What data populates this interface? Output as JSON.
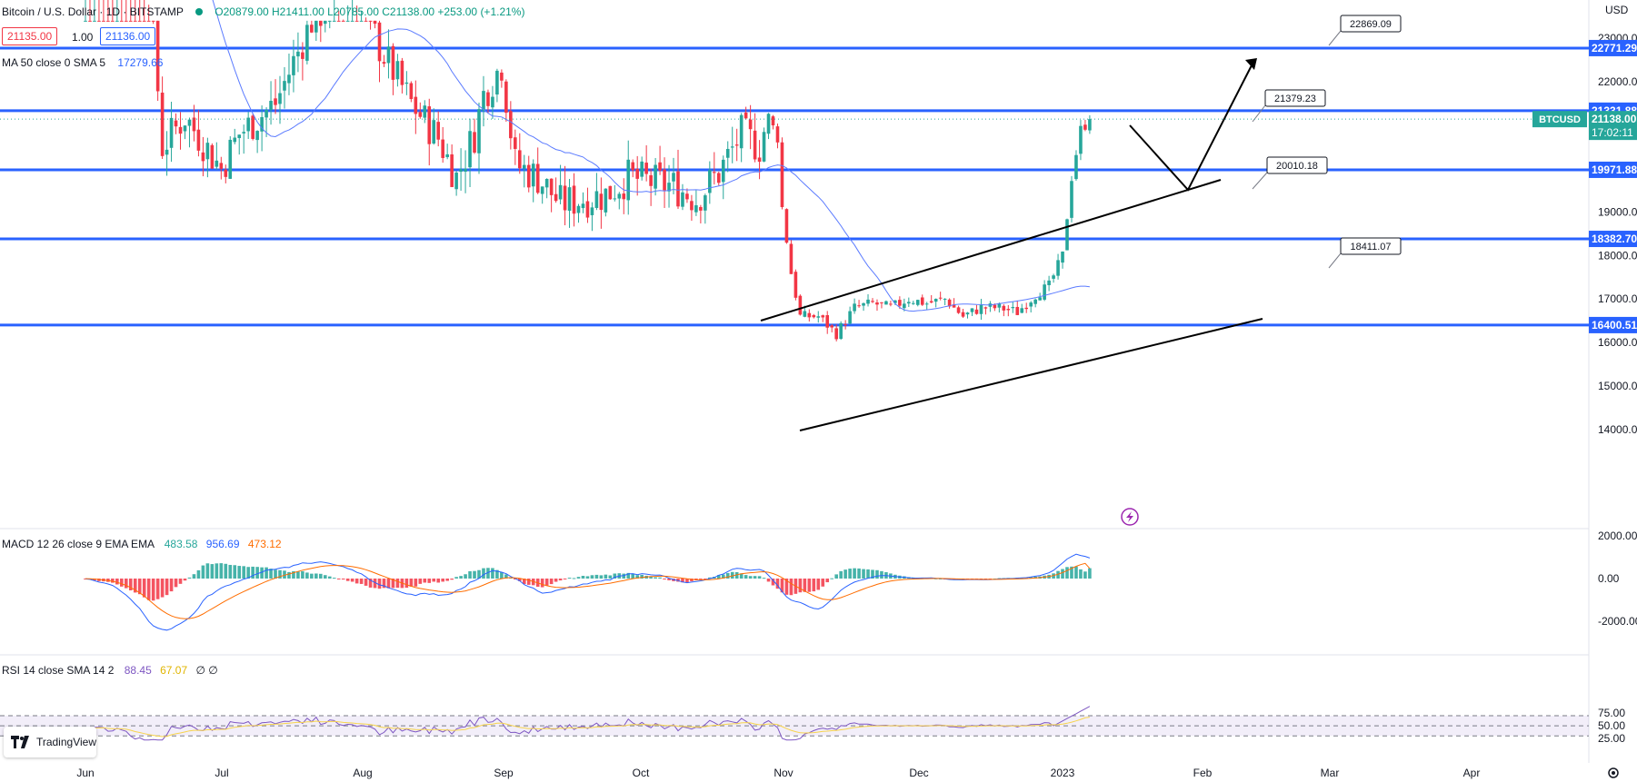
{
  "header": {
    "title": "Bitcoin / U.S. Dollar · 1D · BITSTAMP",
    "ohlc": "O20879.00 H21411.00 L20785.00 C21138.00 +253.00 (+1.21%)",
    "sell_price": "21135.00",
    "spread": "1.00",
    "buy_price": "21136.00",
    "ma_label": "MA 50 close 0 SMA 5",
    "ma_value": "17279.66",
    "currency": "USD"
  },
  "macd_legend": {
    "label": "MACD 12 26 close 9 EMA EMA",
    "v1": "483.58",
    "v2": "956.69",
    "v3": "473.12"
  },
  "rsi_legend": {
    "label": "RSI 14 close SMA 14 2",
    "v1": "88.45",
    "v2": "67.07",
    "v3": "∅ ∅"
  },
  "logo_text": "TradingView",
  "colors": {
    "up": "#26a69a",
    "down": "#f23645",
    "level": "#2962ff",
    "ma": "#5b7bff",
    "macd": "#2962ff",
    "signal": "#ff6d00",
    "rsi": "#7e57c2",
    "rsi_sma": "#f7d44c"
  },
  "chart_data": [
    {
      "type": "candlestick",
      "title": "Bitcoin / U.S. Dollar · 1D · BITSTAMP",
      "ylim": [
        13000,
        23400
      ],
      "y_ticks": [
        14000,
        15000,
        16000,
        17000,
        18000,
        19000,
        20000,
        21000,
        22000,
        23000
      ],
      "x_labels": [
        "Jun",
        "Jul",
        "Aug",
        "Sep",
        "Oct",
        "Nov",
        "Dec",
        "2023",
        "Feb",
        "Mar",
        "Apr"
      ],
      "price_levels": [
        {
          "value": 22771.29,
          "label": "22771.29"
        },
        {
          "value": 21331.88,
          "label": "21331.88"
        },
        {
          "value": 19971.88,
          "label": "19971.88"
        },
        {
          "value": 18382.7,
          "label": "18382.70"
        },
        {
          "value": 16400.51,
          "label": "16400.51"
        }
      ],
      "annotations": [
        {
          "label": "22869.09"
        },
        {
          "label": "21379.23"
        },
        {
          "label": "20010.18"
        },
        {
          "label": "18411.07"
        }
      ],
      "last_price": {
        "symbol": "BTCUSD",
        "price": "21138.00",
        "countdown": "17:02:11"
      },
      "series": [
        {
          "name": "MA 50 close 0 SMA 5",
          "last": 17279.66
        }
      ]
    },
    {
      "type": "line",
      "title": "MACD 12 26 close 9 EMA EMA",
      "ylim": [
        -2600,
        2200
      ],
      "y_ticks": [
        "2000.00",
        "0.00",
        "-2000.00"
      ],
      "series": [
        {
          "name": "MACD",
          "last": 956.69
        },
        {
          "name": "Signal",
          "last": 473.12
        },
        {
          "name": "Histogram",
          "last": 483.58
        }
      ]
    },
    {
      "type": "line",
      "title": "RSI 14 close SMA 14 2",
      "ylim": [
        15,
        100
      ],
      "y_ticks": [
        "75.00",
        "50.00",
        "25.00"
      ],
      "series": [
        {
          "name": "RSI",
          "last": 88.45
        },
        {
          "name": "RSI SMA",
          "last": 67.07
        }
      ]
    }
  ]
}
